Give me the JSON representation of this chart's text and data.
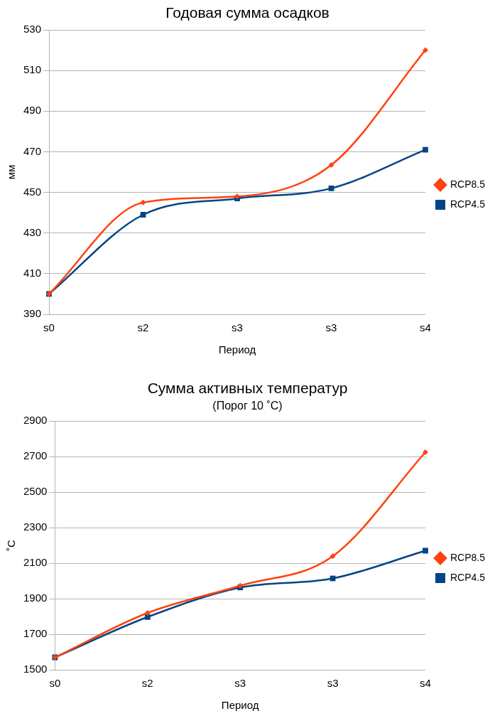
{
  "chart_data": [
    {
      "type": "line",
      "title": "Годовая сумма осадков",
      "xlabel": "Период",
      "ylabel": "мм",
      "categories": [
        "s0",
        "s2",
        "s3",
        "s3",
        "s4"
      ],
      "series": [
        {
          "name": "RCP4.5",
          "color": "#004586",
          "marker": "square",
          "values": [
            400,
            439,
            447,
            452,
            471
          ]
        },
        {
          "name": "RCP8.5",
          "color": "#ff420e",
          "marker": "diamond",
          "values": [
            400,
            445,
            448,
            463.5,
            520
          ]
        }
      ],
      "ylim": [
        390,
        530
      ],
      "yticks": [
        390,
        410,
        430,
        450,
        470,
        490,
        510,
        530
      ],
      "grid": "y",
      "legend": "right",
      "line_style": "solid"
    },
    {
      "type": "line",
      "title": "Сумма активных температур",
      "subtitle": "(Порог 10 ˚C)",
      "xlabel": "Период",
      "ylabel": "˚C",
      "categories": [
        "s0",
        "s2",
        "s3",
        "s3",
        "s4"
      ],
      "series": [
        {
          "name": "RCP4.5",
          "color": "#004586",
          "marker": "square",
          "values": [
            1570,
            1797,
            1963,
            2014,
            2170
          ]
        },
        {
          "name": "RCP8.5",
          "color": "#ff420e",
          "marker": "diamond",
          "values": [
            1570,
            1820,
            1973,
            2139,
            2724
          ]
        }
      ],
      "ylim": [
        1500,
        2900
      ],
      "yticks": [
        1500,
        1700,
        1900,
        2100,
        2300,
        2500,
        2700,
        2900
      ],
      "grid": "y",
      "legend": "right",
      "line_style": "solid"
    }
  ]
}
